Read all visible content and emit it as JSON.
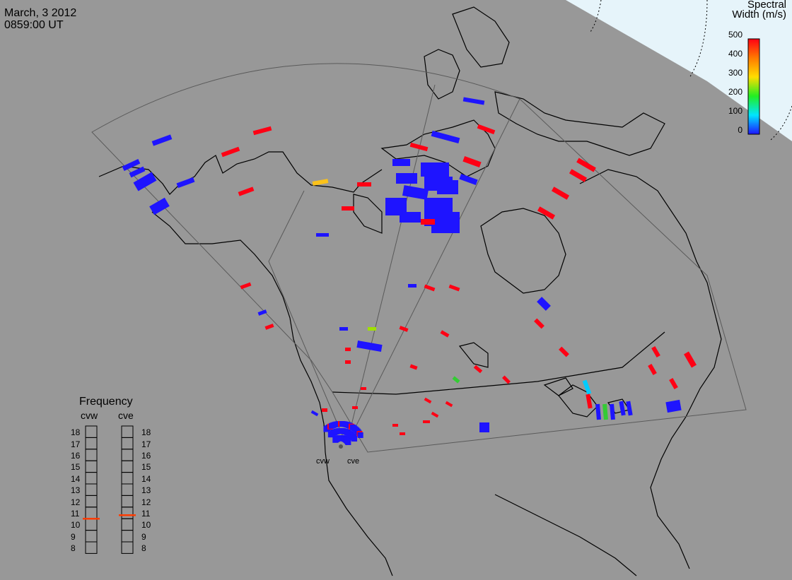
{
  "title": {
    "date": "March, 3 2012",
    "time": "0859:00 UT"
  },
  "colorbar": {
    "title_line1": "Spectral",
    "title_line2": "Width (m/s)",
    "ticks": [
      "500",
      "400",
      "300",
      "200",
      "100",
      "0"
    ]
  },
  "frequency": {
    "title": "Frequency",
    "radars": [
      {
        "name": "cvw",
        "value": 10.5
      },
      {
        "name": "cve",
        "value": 10.8
      }
    ],
    "ticks": [
      "18",
      "17",
      "16",
      "15",
      "14",
      "13",
      "12",
      "11",
      "10",
      "9",
      "8"
    ],
    "marker_color": "#ff3c00"
  },
  "sites": [
    {
      "name": "cvw"
    },
    {
      "name": "cve"
    }
  ],
  "colors": {
    "background": "#989898",
    "ice": "#e6f4fa",
    "low_width": "#1e14ff",
    "high_width": "#ff0014",
    "mid_width": "#fbc21a"
  }
}
